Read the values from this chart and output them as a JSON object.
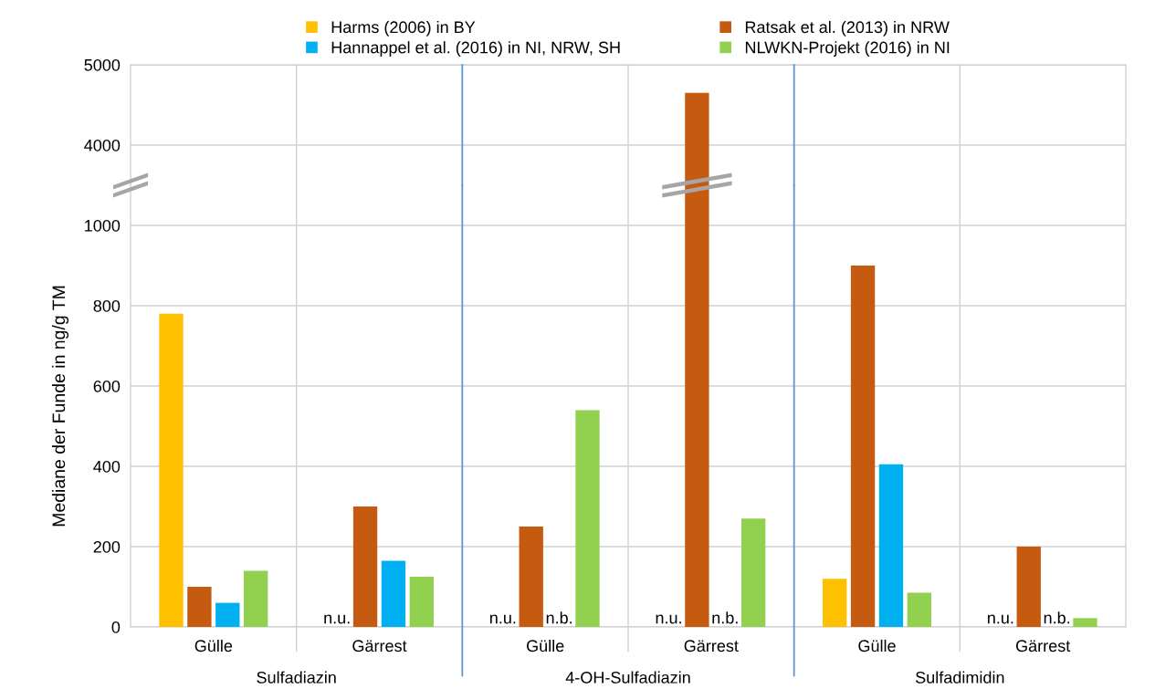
{
  "chart_data": [
    {
      "type": "bar",
      "categories": [
        null,
        null,
        null,
        null,
        null,
        null
      ],
      "series": [
        {
          "name": "Harms (2006) in BY",
          "color": "#ffc000",
          "values": [
            null,
            null,
            null,
            null,
            null,
            null
          ]
        },
        {
          "name": "Ratsak et al. (2013) in NRW",
          "color": "#c55a11",
          "values": [
            null,
            null,
            null,
            4650,
            null,
            null
          ]
        },
        {
          "name": "Hannappel et al. (2016) in NI, NRW, SH",
          "color": "#00b0f0",
          "values": [
            null,
            null,
            null,
            null,
            null,
            null
          ]
        },
        {
          "name": "NLWKN-Projekt (2016) in NI",
          "color": "#92d050",
          "values": [
            null,
            null,
            null,
            null,
            null,
            null
          ]
        }
      ],
      "ylim": [
        3500,
        5000
      ],
      "yticks": [
        4000,
        5000
      ],
      "tick_labels": "y",
      "grid": true,
      "legend": "top"
    },
    {
      "type": "bar",
      "ylabel": "Mediane der Funde in ng/g TM",
      "categories": [
        "Gülle",
        "Gärrest",
        "Gülle",
        "Gärrest",
        "Gülle",
        "Gärrest"
      ],
      "annotations": [
        "Sulfadiazin",
        "4-OH-Sulfadiazin",
        "Sulfadimidin"
      ],
      "series": [
        {
          "color": "#ffc000",
          "values": [
            780,
            null,
            null,
            null,
            120,
            null
          ],
          "value_labels": [
            null,
            "n.u.",
            "n.u.",
            "n.u.",
            null,
            "n.u."
          ]
        },
        {
          "color": "#c55a11",
          "values": [
            100,
            300,
            250,
            null,
            900,
            200
          ]
        },
        {
          "color": "#00b0f0",
          "values": [
            60,
            165,
            null,
            null,
            405,
            null
          ],
          "value_labels": [
            null,
            null,
            "n.b.",
            "n.b.",
            null,
            "n.b."
          ]
        },
        {
          "color": "#92d050",
          "values": [
            140,
            125,
            540,
            270,
            85,
            22
          ]
        }
      ],
      "ylim": [
        0,
        1100
      ],
      "yticks": [
        0,
        200,
        400,
        600,
        800,
        1000
      ],
      "grid": true
    }
  ]
}
